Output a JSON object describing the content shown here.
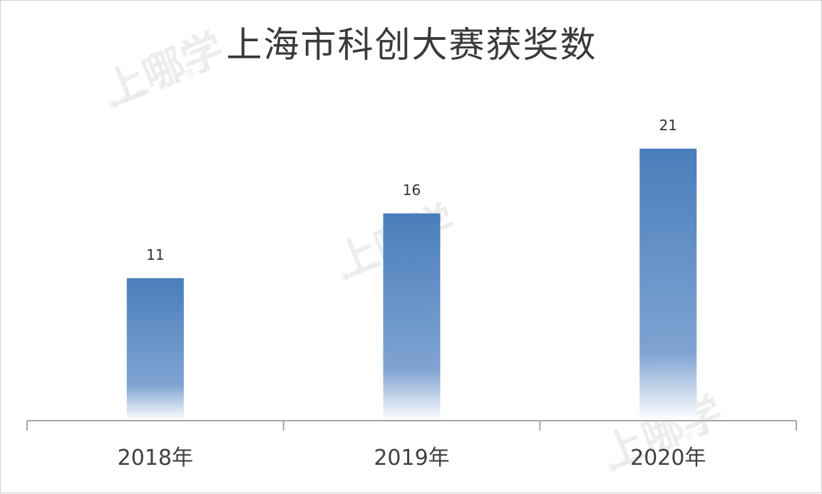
{
  "chart_data": {
    "type": "bar",
    "title": "上海市科创大赛获奖数",
    "categories": [
      "2018年",
      "2019年",
      "2020年"
    ],
    "values": [
      11,
      16,
      21
    ],
    "xlabel": "",
    "ylabel": "",
    "ylim": [
      0,
      25
    ],
    "grid": false,
    "legend": "none",
    "colors": {
      "bar_top": "#4a7ebb",
      "bar_bottom": "#ffffff",
      "axis": "#a6a6a6"
    }
  },
  "watermark": {
    "main": "上哪学",
    "sub": "查学校 用上哪学"
  }
}
